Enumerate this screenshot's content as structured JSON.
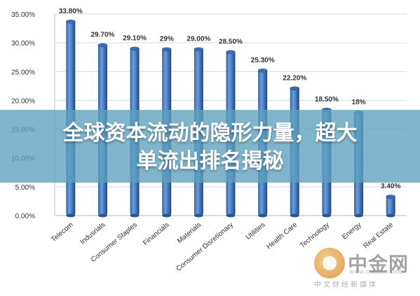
{
  "chart_data": {
    "type": "bar",
    "categories": [
      "Telecom",
      "Indusrials",
      "Consumer Staples",
      "Financials",
      "Materials",
      "Consumer Disretionary",
      "Utilities",
      "Health Care",
      "Technology",
      "Energy",
      "Real Estate"
    ],
    "values": [
      33.8,
      29.7,
      29.1,
      29.0,
      29.0,
      28.5,
      25.3,
      22.2,
      18.5,
      18.0,
      3.4
    ],
    "data_labels": [
      "33.80%",
      "29.70%",
      "29.10%",
      "29%",
      "29.00%",
      "28.50%",
      "25.30%",
      "22.20%",
      "18.50%",
      "18%",
      "3.40%"
    ],
    "y_ticks": [
      0,
      5,
      10,
      15,
      20,
      25,
      30,
      35
    ],
    "y_tick_labels": [
      "0.00%",
      "5.00%",
      "10.00%",
      "15.00%",
      "20.00%",
      "25.00%",
      "30.00%",
      "35.00%"
    ],
    "ylim": [
      0,
      35
    ],
    "grid": true,
    "bar_color": "#4a7fc4",
    "title": "",
    "xlabel": "",
    "ylabel": ""
  },
  "banner": {
    "line1": "全球资本流动的隐形力量，超大",
    "line2": "单流出排名揭秘",
    "color": "#5ca0be"
  },
  "watermark": {
    "name": "中金网",
    "subtitle": "中文财经新媒体",
    "url": "WWW.CNGOLD.ORG"
  }
}
